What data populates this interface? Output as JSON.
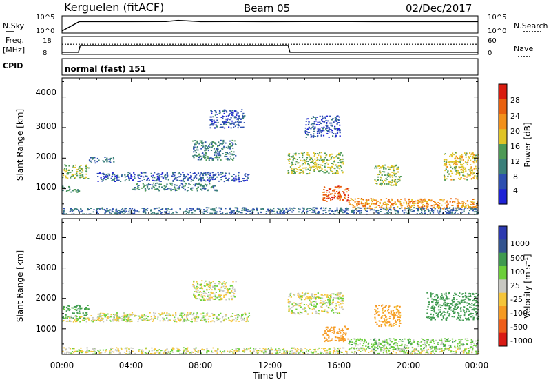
{
  "header": {
    "station": "Kerguelen (fitACF)",
    "beam": "Beam 05",
    "date": "02/Dec/2017"
  },
  "nsky_panel": {
    "left_label": "N.Sky",
    "right_label": "N.Search",
    "left_ticks": [
      "10^5",
      "10^0"
    ],
    "right_ticks": [
      "10^5",
      "10^0"
    ]
  },
  "freq_panel": {
    "left_label_line1": "Freq.",
    "left_label_line2": "[MHz]",
    "right_label": "Nave",
    "left_ticks": [
      "18",
      "8"
    ],
    "right_ticks": [
      "60",
      "0"
    ]
  },
  "cpid": {
    "label": "CPID",
    "value": "normal (fast) 151"
  },
  "colors": {
    "power_scale": [
      "#1e22d6",
      "#2d4fb0",
      "#3a7f7a",
      "#4d9955",
      "#e0c426",
      "#f2901a",
      "#e8600e",
      "#d91c0f"
    ],
    "velocity_scale": [
      "#d91a14",
      "#ee5e1a",
      "#f69a22",
      "#f5c53a",
      "#c8c8c2",
      "#6ccf3a",
      "#3f9a4f",
      "#33548f",
      "#2c3ab0"
    ],
    "ground_scatter": "#c8c8c2"
  },
  "chart_data": [
    {
      "type": "line",
      "title": "",
      "ylabel": "N.Sky",
      "y2label": "N.Search",
      "x_start_hour": 0,
      "x_end_hour": 24,
      "series": [
        {
          "name": "N.Sky",
          "x": [
            0,
            1,
            2,
            4,
            6,
            6.7,
            8,
            10,
            12,
            14,
            16,
            18,
            20,
            22,
            24
          ],
          "values": [
            3,
            3500,
            3600,
            3600,
            3700,
            9000,
            3600,
            3700,
            3600,
            4000,
            3800,
            3600,
            3600,
            3600,
            3600
          ]
        },
        {
          "name": "N.Search",
          "x": [
            0,
            24
          ],
          "values": [
            0,
            0
          ]
        }
      ]
    },
    {
      "type": "line",
      "ylabel": "Freq. [MHz]",
      "y2label": "Nave",
      "ylim": [
        8,
        18
      ],
      "y2lim": [
        0,
        60
      ],
      "series": [
        {
          "name": "Freq",
          "x": [
            0,
            0.95,
            1.05,
            13.05,
            13.15,
            24
          ],
          "values": [
            8.5,
            8.5,
            13,
            13,
            8.5,
            8.5
          ]
        },
        {
          "name": "Nave",
          "x": [
            0,
            24
          ],
          "values": [
            35,
            35
          ]
        }
      ]
    },
    {
      "type": "heatmap",
      "ylabel": "Slant Range [km]",
      "colorbar_label": "Power [dB]",
      "colorbar_ticks": [
        "28",
        "24",
        "20",
        "16",
        "12",
        "8",
        "4"
      ],
      "xlim": [
        0,
        24
      ],
      "ylim": [
        180,
        4600
      ],
      "yticks": [
        "4000",
        "3000",
        "2000",
        "1000"
      ],
      "echo_regions": [
        {
          "t0": 0.0,
          "t1": 1.5,
          "r0": 1350,
          "r1": 1800,
          "power": 16
        },
        {
          "t0": 0.0,
          "t1": 1.0,
          "r0": 900,
          "r1": 1100,
          "power": 12
        },
        {
          "t0": 1.5,
          "t1": 3.0,
          "r0": 1850,
          "r1": 2050,
          "power": 8
        },
        {
          "t0": 2.0,
          "t1": 10.8,
          "r0": 1250,
          "r1": 1550,
          "power": 6
        },
        {
          "t0": 4.0,
          "t1": 9.0,
          "r0": 950,
          "r1": 1200,
          "power": 10
        },
        {
          "t0": 7.5,
          "t1": 10.0,
          "r0": 1950,
          "r1": 2600,
          "power": 10
        },
        {
          "t0": 8.5,
          "t1": 10.5,
          "r0": 3000,
          "r1": 3600,
          "power": 6
        },
        {
          "t0": 13.0,
          "t1": 16.2,
          "r0": 1500,
          "r1": 2200,
          "power": 16
        },
        {
          "t0": 14.0,
          "t1": 16.0,
          "r0": 2700,
          "r1": 3400,
          "power": 6
        },
        {
          "t0": 15.0,
          "t1": 16.5,
          "r0": 600,
          "r1": 1100,
          "power": 26
        },
        {
          "t0": 16.5,
          "t1": 24.0,
          "r0": 350,
          "r1": 700,
          "power": 22
        },
        {
          "t0": 18.0,
          "t1": 19.5,
          "r0": 1100,
          "r1": 1800,
          "power": 16
        },
        {
          "t0": 22.0,
          "t1": 24.0,
          "r0": 1300,
          "r1": 2200,
          "power": 18
        },
        {
          "t0": 0.0,
          "t1": 24.0,
          "r0": 180,
          "r1": 400,
          "power": 8
        }
      ]
    },
    {
      "type": "heatmap",
      "ylabel": "Slant Range [km]",
      "colorbar_label": "Velocity [m s⁻¹]",
      "colorbar_ticks": [
        "1000",
        "500",
        "100",
        "25",
        "-25",
        "-100",
        "-500",
        "-1000"
      ],
      "xlim": [
        0,
        24
      ],
      "ylim": [
        180,
        4600
      ],
      "yticks": [
        "4000",
        "3000",
        "2000",
        "1000"
      ],
      "xticks": [
        "00:00",
        "04:00",
        "08:00",
        "12:00",
        "16:00",
        "20:00",
        "00:00"
      ],
      "xlabel": "Time UT",
      "echo_regions": [
        {
          "t0": 0.0,
          "t1": 1.5,
          "r0": 1350,
          "r1": 1800,
          "velocity": 150
        },
        {
          "t0": 0.0,
          "t1": 4.0,
          "r0": 1250,
          "r1": 1450,
          "velocity": 0
        },
        {
          "t0": 2.0,
          "t1": 10.8,
          "r0": 1250,
          "r1": 1550,
          "velocity": 0
        },
        {
          "t0": 7.5,
          "t1": 10.0,
          "r0": 1950,
          "r1": 2600,
          "velocity": 0
        },
        {
          "t0": 13.0,
          "t1": 16.2,
          "r0": 1500,
          "r1": 2200,
          "velocity": 0
        },
        {
          "t0": 15.0,
          "t1": 16.5,
          "r0": 600,
          "r1": 1100,
          "velocity": -200
        },
        {
          "t0": 16.5,
          "t1": 24.0,
          "r0": 350,
          "r1": 700,
          "velocity": 60
        },
        {
          "t0": 18.0,
          "t1": 19.5,
          "r0": 1100,
          "r1": 1800,
          "velocity": -150
        },
        {
          "t0": 21.0,
          "t1": 24.0,
          "r0": 1300,
          "r1": 2200,
          "velocity": 300
        },
        {
          "t0": 0.0,
          "t1": 24.0,
          "r0": 180,
          "r1": 400,
          "velocity": 0
        }
      ]
    }
  ]
}
